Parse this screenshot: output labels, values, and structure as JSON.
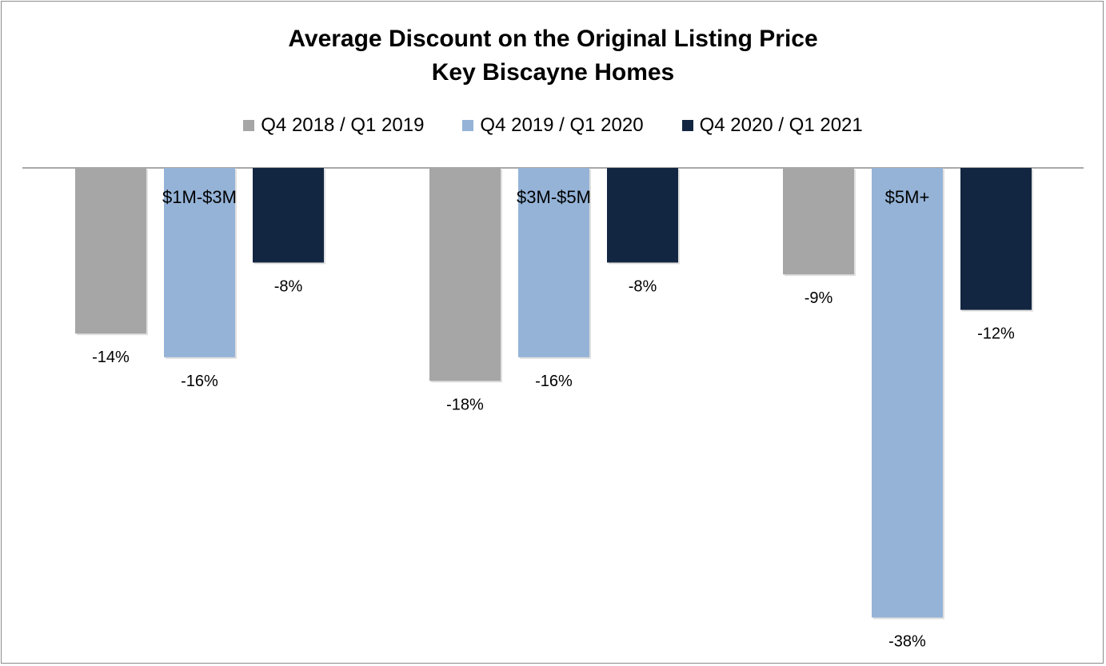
{
  "chart_data": {
    "type": "bar",
    "title": "Average Discount on the Original Listing Price",
    "subtitle": "Key Biscayne Homes",
    "categories": [
      "$1M-$3M",
      "$3M-$5M",
      "$5M+"
    ],
    "series": [
      {
        "name": "Q4 2018 / Q1 2019",
        "color": "#a6a6a6",
        "values": [
          -14,
          -18,
          -9
        ],
        "labels": [
          "-14%",
          "-18%",
          "-9%"
        ]
      },
      {
        "name": "Q4 2019 / Q1 2020",
        "color": "#95b3d7",
        "values": [
          -16,
          -16,
          -38
        ],
        "labels": [
          "-16%",
          "-16%",
          "-38%"
        ]
      },
      {
        "name": "Q4 2020 / Q1 2021",
        "color": "#132641",
        "values": [
          -8,
          -8,
          -12
        ],
        "labels": [
          "-8%",
          "-8%",
          "-12%"
        ]
      }
    ],
    "value_unit": "%",
    "ylim": [
      -40,
      0
    ],
    "grid": false,
    "legend_position": "top",
    "category_labels_position": "at zero line"
  }
}
